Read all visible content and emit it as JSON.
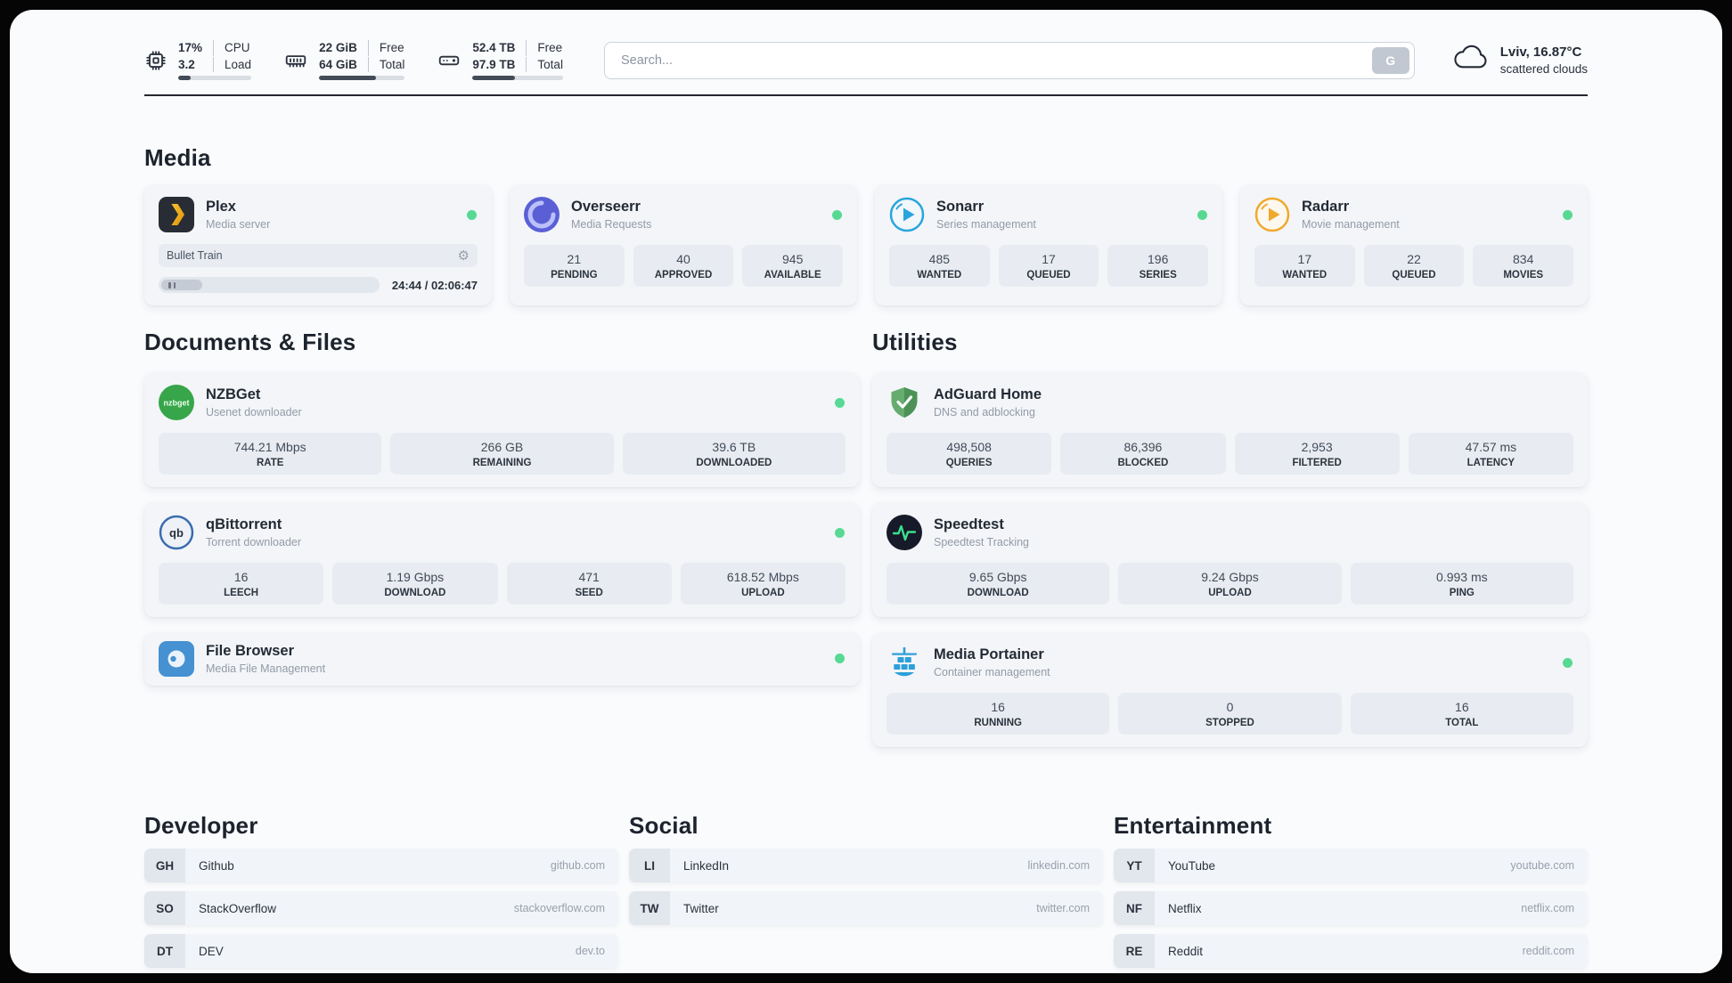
{
  "header": {
    "cpu": {
      "value1": "17%",
      "value2": "3.2",
      "label1": "CPU",
      "label2": "Load",
      "progress": 17
    },
    "memory": {
      "value1": "22 GiB",
      "value2": "64 GiB",
      "label1": "Free",
      "label2": "Total",
      "progress": 66
    },
    "disk": {
      "value1": "52.4 TB",
      "value2": "97.9 TB",
      "label1": "Free",
      "label2": "Total",
      "progress": 47
    },
    "search": {
      "placeholder": "Search...",
      "button_label": "G"
    },
    "weather": {
      "location": "Lviv, 16.87°C",
      "condition": "scattered clouds"
    }
  },
  "icons": {
    "settings_gear": "⚙"
  },
  "sections": {
    "media": {
      "title": "Media",
      "plex": {
        "name": "Plex",
        "subtitle": "Media server",
        "now_playing": "Bullet Train",
        "time": "24:44 / 02:06:47"
      },
      "overseerr": {
        "name": "Overseerr",
        "subtitle": "Media Requests",
        "stats": [
          {
            "value": "21",
            "label": "PENDING"
          },
          {
            "value": "40",
            "label": "APPROVED"
          },
          {
            "value": "945",
            "label": "AVAILABLE"
          }
        ]
      },
      "sonarr": {
        "name": "Sonarr",
        "subtitle": "Series management",
        "stats": [
          {
            "value": "485",
            "label": "WANTED"
          },
          {
            "value": "17",
            "label": "QUEUED"
          },
          {
            "value": "196",
            "label": "SERIES"
          }
        ]
      },
      "radarr": {
        "name": "Radarr",
        "subtitle": "Movie management",
        "stats": [
          {
            "value": "17",
            "label": "WANTED"
          },
          {
            "value": "22",
            "label": "QUEUED"
          },
          {
            "value": "834",
            "label": "MOVIES"
          }
        ]
      }
    },
    "documents": {
      "title": "Documents & Files",
      "nzbget": {
        "name": "NZBGet",
        "subtitle": "Usenet downloader",
        "stats": [
          {
            "value": "744.21 Mbps",
            "label": "RATE"
          },
          {
            "value": "266 GB",
            "label": "REMAINING"
          },
          {
            "value": "39.6 TB",
            "label": "DOWNLOADED"
          }
        ]
      },
      "qbittorrent": {
        "name": "qBittorrent",
        "subtitle": "Torrent downloader",
        "stats": [
          {
            "value": "16",
            "label": "LEECH"
          },
          {
            "value": "1.19 Gbps",
            "label": "DOWNLOAD"
          },
          {
            "value": "471",
            "label": "SEED"
          },
          {
            "value": "618.52 Mbps",
            "label": "UPLOAD"
          }
        ]
      },
      "filebrowser": {
        "name": "File Browser",
        "subtitle": "Media File Management"
      }
    },
    "utilities": {
      "title": "Utilities",
      "adguard": {
        "name": "AdGuard Home",
        "subtitle": "DNS and adblocking",
        "stats": [
          {
            "value": "498,508",
            "label": "QUERIES"
          },
          {
            "value": "86,396",
            "label": "BLOCKED"
          },
          {
            "value": "2,953",
            "label": "FILTERED"
          },
          {
            "value": "47.57 ms",
            "label": "LATENCY"
          }
        ]
      },
      "speedtest": {
        "name": "Speedtest",
        "subtitle": "Speedtest Tracking",
        "stats": [
          {
            "value": "9.65 Gbps",
            "label": "DOWNLOAD"
          },
          {
            "value": "9.24 Gbps",
            "label": "UPLOAD"
          },
          {
            "value": "0.993 ms",
            "label": "PING"
          }
        ]
      },
      "portainer": {
        "name": "Media Portainer",
        "subtitle": "Container management",
        "stats": [
          {
            "value": "16",
            "label": "RUNNING"
          },
          {
            "value": "0",
            "label": "STOPPED"
          },
          {
            "value": "16",
            "label": "TOTAL"
          }
        ]
      }
    },
    "developer": {
      "title": "Developer",
      "links": [
        {
          "abbr": "GH",
          "name": "Github",
          "url": "github.com"
        },
        {
          "abbr": "SO",
          "name": "StackOverflow",
          "url": "stackoverflow.com"
        },
        {
          "abbr": "DT",
          "name": "DEV",
          "url": "dev.to"
        }
      ]
    },
    "social": {
      "title": "Social",
      "links": [
        {
          "abbr": "LI",
          "name": "LinkedIn",
          "url": "linkedin.com"
        },
        {
          "abbr": "TW",
          "name": "Twitter",
          "url": "twitter.com"
        }
      ]
    },
    "entertainment": {
      "title": "Entertainment",
      "links": [
        {
          "abbr": "YT",
          "name": "YouTube",
          "url": "youtube.com"
        },
        {
          "abbr": "NF",
          "name": "Netflix",
          "url": "netflix.com"
        },
        {
          "abbr": "RE",
          "name": "Reddit",
          "url": "reddit.com"
        }
      ]
    }
  },
  "colors": {
    "status_online": "#57d993",
    "divider": "#23272e",
    "card_bg": "#f3f5f8",
    "stat_bg": "#e8ecf2"
  }
}
